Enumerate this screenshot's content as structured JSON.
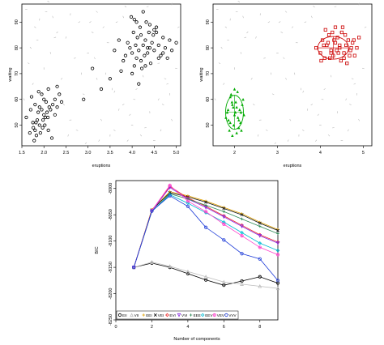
{
  "colors": {
    "axis": "#000000",
    "noise": "#b8b8b8",
    "cluster_red": "#cc0000",
    "cluster_green": "#00aa00",
    "bic": {
      "EII": "#000000",
      "VII": "#bdbdbd",
      "EEI": "#e0a000",
      "VEI": "#111111",
      "EVI": "#ee2222",
      "VVI": "#8a2be2",
      "EEE": "#2e8b57",
      "EEV": "#00bcd4",
      "VEV": "#ff44cc",
      "VVV": "#1e3cd8"
    }
  },
  "chart_data": [
    {
      "type": "scatter",
      "panel": "top-left",
      "xlabel": "eruptions",
      "ylabel": "waiting",
      "xlim": [
        1.5,
        5.1
      ],
      "ylim": [
        42,
        97
      ],
      "xticks": [
        "1.5",
        "2.0",
        "2.5",
        "3.0",
        "3.5",
        "4.0",
        "4.5",
        "5.0"
      ],
      "yticks": [
        "50",
        "60",
        "70",
        "80",
        "90"
      ],
      "legend": "none",
      "series": [
        {
          "marker": "open-circle",
          "x": [
            1.6,
            1.7,
            1.75,
            1.8,
            1.8,
            1.83,
            1.85,
            1.87,
            1.9,
            1.9,
            1.95,
            1.97,
            2.0,
            2.0,
            2.03,
            2.05,
            2.1,
            2.1,
            2.15,
            2.2,
            2.25,
            2.3,
            2.35,
            1.78,
            1.92,
            1.98,
            2.07,
            2.12,
            2.18,
            1.72,
            1.88,
            2.02,
            2.25,
            2.4,
            1.68,
            1.82,
            1.95,
            2.09,
            2.3,
            1.76,
            3.6,
            3.7,
            3.8,
            3.85,
            3.9,
            3.95,
            4.0,
            4.03,
            4.05,
            4.08,
            4.1,
            4.12,
            4.15,
            4.18,
            4.2,
            4.22,
            4.25,
            4.28,
            4.3,
            4.32,
            4.35,
            4.38,
            4.4,
            4.42,
            4.45,
            4.48,
            4.5,
            4.55,
            4.6,
            4.65,
            4.7,
            4.75,
            4.8,
            4.85,
            4.9,
            5.0,
            4.1,
            4.3,
            4.5,
            4.0,
            4.6,
            3.98,
            4.2,
            4.4,
            3.75,
            4.7,
            4.25,
            4.55,
            3.5,
            3.3,
            2.9,
            3.1,
            4.15,
            4.35,
            4.05
          ],
          "y": [
            53,
            56,
            51,
            48,
            58,
            46,
            52,
            55,
            57,
            50,
            62,
            49,
            54,
            60,
            53,
            59,
            64,
            48,
            56,
            58,
            60,
            65,
            62,
            44,
            47,
            52,
            55,
            57,
            45,
            61,
            63,
            50,
            54,
            59,
            47,
            51,
            56,
            53,
            57,
            49,
            79,
            83,
            75,
            77,
            82,
            80,
            78,
            86,
            73,
            81,
            76,
            84,
            79,
            88,
            85,
            72,
            81,
            77,
            83,
            90,
            78,
            86,
            80,
            74,
            82,
            85,
            79,
            88,
            81,
            77,
            84,
            80,
            76,
            83,
            79,
            82,
            90,
            73,
            87,
            70,
            76,
            92,
            75,
            89,
            71,
            78,
            94,
            86,
            68,
            64,
            60,
            72,
            66,
            80,
            91
          ]
        }
      ],
      "noise": {
        "x": [
          1.6,
          1.8,
          2.2,
          2.5,
          2.8,
          3.0,
          3.2,
          3.4,
          3.6,
          3.8,
          4.0,
          4.2,
          4.4,
          4.6,
          4.8,
          5.0,
          1.7,
          2.0,
          2.4,
          2.7,
          3.1,
          3.3,
          3.5,
          3.9,
          4.3,
          4.7,
          4.9,
          1.9,
          2.3,
          2.6,
          2.9,
          3.2,
          3.7,
          4.1,
          4.5,
          1.65,
          2.15,
          2.55,
          3.05,
          3.45,
          3.85,
          4.25,
          4.65,
          5.05,
          2.05,
          2.45,
          2.85,
          3.25,
          3.65,
          4.05,
          4.45,
          4.85,
          1.75,
          2.25,
          2.75,
          3.15,
          3.55,
          3.95,
          4.35,
          4.75,
          1.55,
          2.6,
          3.35,
          4.6,
          2.1,
          3.8,
          4.9,
          2.95,
          1.85,
          3.6
        ],
        "y": [
          95,
          88,
          92,
          84,
          90,
          78,
          94,
          70,
          63,
          58,
          50,
          46,
          55,
          60,
          66,
          72,
          80,
          72,
          68,
          76,
          86,
          52,
          46,
          44,
          49,
          58,
          52,
          91,
          86,
          52,
          62,
          68,
          56,
          64,
          44,
          74,
          78,
          46,
          90,
          82,
          96,
          69,
          48,
          88,
          94,
          58,
          70,
          44,
          90,
          60,
          86,
          62,
          66,
          84,
          48,
          76,
          64,
          54,
          96,
          68,
          60,
          93,
          88,
          74,
          98,
          92,
          97,
          43,
          83,
          48
        ]
      }
    },
    {
      "type": "scatter",
      "panel": "top-right",
      "xlabel": "eruptions",
      "ylabel": "waiting",
      "xlim": [
        1.5,
        5.2
      ],
      "ylim": [
        42,
        97
      ],
      "xticks": [
        "2",
        "3",
        "4",
        "5"
      ],
      "yticks": [
        "50",
        "60",
        "70",
        "80",
        "90"
      ],
      "legend": "none",
      "series": [
        {
          "marker": "filled-triangle",
          "color_key": "cluster_green",
          "x": [
            1.8,
            1.85,
            1.9,
            1.95,
            2.0,
            2.05,
            2.1,
            2.15,
            2.2,
            1.88,
            1.92,
            1.98,
            2.03,
            2.08,
            2.12,
            1.83,
            1.95,
            2.0,
            2.1,
            2.18,
            1.9,
            2.05,
            2.22,
            1.86,
            1.97,
            2.02,
            2.14,
            2.07,
            1.94,
            2.16
          ],
          "y": [
            53,
            56,
            51,
            58,
            54,
            57,
            52,
            55,
            60,
            48,
            62,
            50,
            59,
            53,
            56,
            55,
            46,
            64,
            49,
            58,
            61,
            47,
            54,
            52,
            57,
            55,
            51,
            63,
            59,
            48
          ]
        },
        {
          "marker": "open-square",
          "color_key": "cluster_red",
          "x": [
            3.9,
            4.0,
            4.05,
            4.1,
            4.15,
            4.2,
            4.25,
            4.3,
            4.35,
            4.4,
            4.45,
            4.5,
            4.55,
            4.6,
            4.65,
            4.7,
            4.75,
            4.8,
            4.85,
            4.9,
            4.02,
            4.12,
            4.22,
            4.32,
            4.42,
            4.52,
            4.62,
            4.72,
            4.18,
            4.28,
            4.38,
            4.48,
            4.58,
            4.08,
            4.68,
            4.78,
            4.25,
            4.45,
            4.35,
            4.55
          ],
          "y": [
            80,
            78,
            83,
            76,
            81,
            85,
            79,
            77,
            82,
            84,
            80,
            86,
            78,
            81,
            83,
            79,
            82,
            77,
            80,
            84,
            75,
            87,
            76,
            83,
            78,
            88,
            74,
            80,
            82,
            86,
            79,
            75,
            85,
            81,
            77,
            83,
            78,
            81,
            88,
            76
          ]
        }
      ],
      "noise": {
        "x": [
          1.6,
          1.8,
          2.2,
          2.5,
          2.8,
          3.0,
          3.2,
          3.4,
          3.6,
          3.8,
          4.0,
          4.2,
          4.4,
          4.6,
          4.8,
          5.0,
          1.7,
          2.0,
          2.4,
          2.7,
          3.1,
          3.3,
          3.5,
          3.9,
          4.3,
          4.7,
          4.9,
          1.9,
          2.3,
          2.6,
          2.9,
          3.2,
          3.7,
          4.1,
          4.5,
          1.65,
          2.15,
          2.55,
          3.05,
          3.45,
          3.85,
          4.25,
          4.65,
          5.05,
          2.05,
          2.45,
          2.85,
          3.25,
          3.65,
          4.05,
          4.45,
          4.85,
          1.75,
          2.25,
          2.75,
          3.15,
          3.55,
          3.95,
          4.35,
          4.75,
          1.55,
          2.6,
          3.35,
          4.6,
          2.1,
          3.8,
          4.9,
          2.95,
          1.85,
          3.6
        ],
        "y": [
          95,
          88,
          92,
          84,
          90,
          78,
          94,
          70,
          63,
          58,
          50,
          46,
          55,
          60,
          66,
          72,
          80,
          72,
          68,
          76,
          86,
          52,
          46,
          44,
          49,
          58,
          52,
          91,
          86,
          52,
          62,
          68,
          56,
          64,
          44,
          74,
          78,
          46,
          90,
          82,
          96,
          69,
          48,
          88,
          94,
          58,
          70,
          44,
          90,
          60,
          86,
          62,
          66,
          84,
          48,
          76,
          64,
          54,
          96,
          68,
          60,
          93,
          88,
          74,
          98,
          92,
          97,
          43,
          83,
          48
        ]
      },
      "ellipses": [
        {
          "center": [
            2.0,
            55
          ],
          "color_key": "cluster_green"
        },
        {
          "center": [
            4.3,
            80
          ],
          "color_key": "cluster_red"
        }
      ]
    },
    {
      "type": "line",
      "panel": "bottom",
      "xlabel": "Number of components",
      "ylabel": "BIC",
      "xlim": [
        0,
        9
      ],
      "ylim": [
        -8250,
        -7985
      ],
      "xticks": [
        0,
        2,
        4,
        6,
        8
      ],
      "yticks": [
        -8000,
        -8050,
        -8100,
        -8150,
        -8200,
        -8250
      ],
      "legend": "bottom-left",
      "x": [
        1,
        2,
        3,
        4,
        5,
        6,
        7,
        8,
        9
      ],
      "series": [
        {
          "name": "EII",
          "marker": "circle-open",
          "values": [
            -8150,
            -8142,
            -8150,
            -8162,
            -8174,
            -8184,
            -8176,
            -8168,
            -8180
          ]
        },
        {
          "name": "VII",
          "marker": "triangle-open",
          "values": [
            -8150,
            -8140,
            -8148,
            -8158,
            -8168,
            -8178,
            -8182,
            -8186,
            -8190
          ]
        },
        {
          "name": "EEI",
          "marker": "plus",
          "values": [
            -8150,
            -8040,
            -8006,
            -8014,
            -8024,
            -8036,
            -8048,
            -8064,
            -8078
          ]
        },
        {
          "name": "VEI",
          "marker": "x",
          "values": [
            -8150,
            -8041,
            -8008,
            -8016,
            -8026,
            -8038,
            -8050,
            -8066,
            -8080
          ]
        },
        {
          "name": "EVI",
          "marker": "diamond",
          "values": [
            -8150,
            -8042,
            -7996,
            -8018,
            -8034,
            -8052,
            -8070,
            -8088,
            -8102
          ]
        },
        {
          "name": "VVI",
          "marker": "triangle-down",
          "values": [
            -8150,
            -8043,
            -7998,
            -8020,
            -8036,
            -8054,
            -8072,
            -8090,
            -8104
          ]
        },
        {
          "name": "EEE",
          "marker": "asterisk",
          "values": [
            -8150,
            -8044,
            -8010,
            -8020,
            -8032,
            -8044,
            -8058,
            -8072,
            -8086
          ]
        },
        {
          "name": "EEV",
          "marker": "diamond-plus",
          "values": [
            -8150,
            -8043,
            -8012,
            -8028,
            -8046,
            -8064,
            -8084,
            -8104,
            -8118
          ]
        },
        {
          "name": "VEV",
          "marker": "circle-plus",
          "values": [
            -8150,
            -8042,
            -7994,
            -8024,
            -8044,
            -8068,
            -8090,
            -8112,
            -8126
          ]
        },
        {
          "name": "VVV",
          "marker": "circle-open",
          "values": [
            -8150,
            -8043,
            -8014,
            -8034,
            -8074,
            -8098,
            -8124,
            -8134,
            -8175
          ]
        }
      ]
    }
  ]
}
